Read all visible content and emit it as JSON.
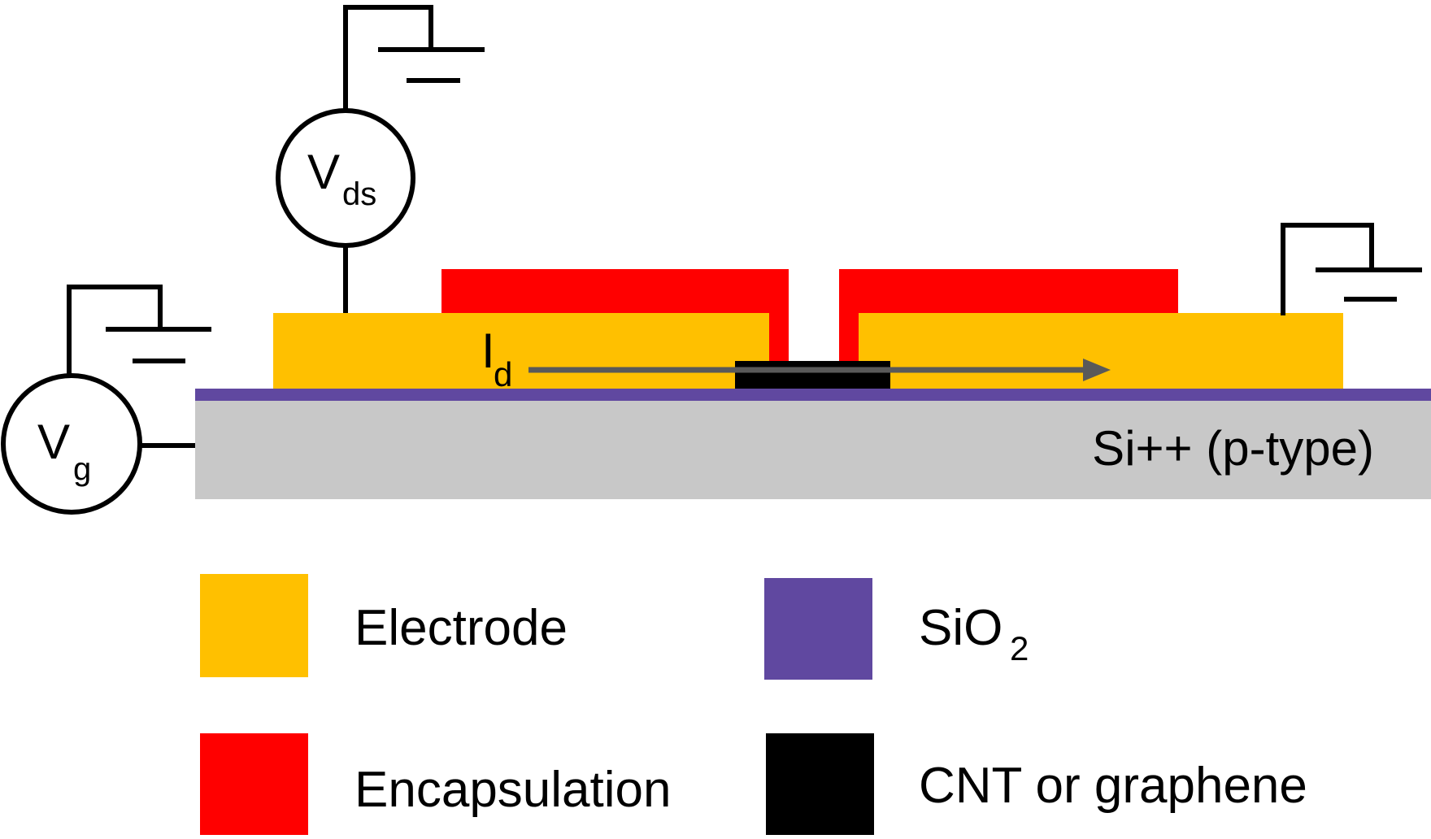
{
  "colors": {
    "electrode": "#FFC000",
    "encapsulation": "#FF0000",
    "sio2": "#6048A0",
    "cnt": "#000000",
    "substrate": "#C8C8C8",
    "current_arrow": "#595959",
    "wire": "#000000"
  },
  "substrate": {
    "label": "Si++ (p-type)"
  },
  "sources": {
    "vds": {
      "main": "V",
      "sub": "ds"
    },
    "vg": {
      "main": "V",
      "sub": "g"
    }
  },
  "current": {
    "main": "I",
    "sub": "d"
  },
  "legend": {
    "electrode": "Electrode",
    "encapsulation": "Encapsulation",
    "sio2_main": "SiO",
    "sio2_sub": "2",
    "cnt": "CNT or graphene"
  },
  "icons": [
    "ground-icon",
    "voltage-source-icon",
    "arrow-icon"
  ]
}
